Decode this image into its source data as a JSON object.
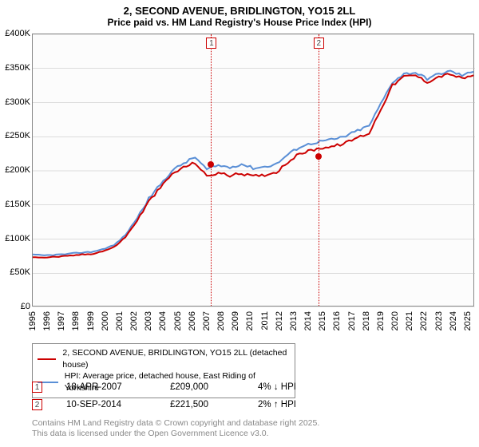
{
  "title_line1": "2, SECOND AVENUE, BRIDLINGTON, YO15 2LL",
  "title_line2": "Price paid vs. HM Land Registry's House Price Index (HPI)",
  "title_fontsize": 13,
  "chart": {
    "type": "line",
    "background_color": "#fcfcfc",
    "border_color": "#888888",
    "xlim": [
      1995,
      2025.5
    ],
    "ylim": [
      0,
      400000
    ],
    "ytick_step": 50000,
    "ytick_labels": [
      "£0",
      "£50K",
      "£100K",
      "£150K",
      "£200K",
      "£250K",
      "£300K",
      "£350K",
      "£400K"
    ],
    "xtick_step": 1,
    "xtick_labels": [
      "1995",
      "1996",
      "1997",
      "1998",
      "1999",
      "2000",
      "2001",
      "2002",
      "2003",
      "2004",
      "2005",
      "2006",
      "2007",
      "2008",
      "2009",
      "2010",
      "2011",
      "2012",
      "2013",
      "2014",
      "2015",
      "2016",
      "2017",
      "2018",
      "2019",
      "2020",
      "2021",
      "2022",
      "2023",
      "2024",
      "2025"
    ],
    "grid_color": "#bbbbbb",
    "axis_fontsize": 11,
    "series": [
      {
        "name": "2, SECOND AVENUE, BRIDLINGTON, YO15 2LL (detached house)",
        "color": "#cc0000",
        "line_width": 2,
        "values": [
          74,
          73,
          74,
          75,
          77,
          78,
          82,
          88,
          103,
          127,
          155,
          175,
          195,
          205,
          212,
          192,
          197,
          193,
          196,
          192,
          194,
          198,
          213,
          225,
          230,
          234,
          236,
          241,
          249,
          255,
          290,
          325,
          338,
          340,
          330,
          338,
          342,
          335,
          340
        ]
      },
      {
        "name": "HPI: Average price, detached house, East Riding of Yorkshire",
        "color": "#5a8fd6",
        "line_width": 2,
        "values": [
          77,
          76,
          77,
          78,
          80,
          81,
          85,
          91,
          106,
          131,
          159,
          180,
          200,
          211,
          220,
          202,
          208,
          205,
          210,
          204,
          206,
          210,
          224,
          235,
          240,
          244,
          246,
          251,
          259,
          266,
          298,
          330,
          342,
          344,
          335,
          342,
          346,
          340,
          345
        ]
      }
    ],
    "series_x_step": 0.8,
    "markers": [
      {
        "label": "1",
        "x": 2007.3,
        "y": 209000
      },
      {
        "label": "2",
        "x": 2014.7,
        "y": 221500
      }
    ],
    "marker_box_color": "#cc0000",
    "point_color": "#cc0000",
    "point_radius": 4
  },
  "legend": {
    "border_color": "#888888",
    "fontsize": 10.5,
    "items": [
      {
        "color": "#cc0000",
        "label": "2, SECOND AVENUE, BRIDLINGTON, YO15 2LL (detached house)"
      },
      {
        "color": "#5a8fd6",
        "label": "HPI: Average price, detached house, East Riding of Yorkshire"
      }
    ]
  },
  "sales": [
    {
      "marker": "1",
      "date": "18-APR-2007",
      "price": "£209,000",
      "pct": "4% ↓ HPI"
    },
    {
      "marker": "2",
      "date": "10-SEP-2014",
      "price": "£221,500",
      "pct": "2% ↑ HPI"
    }
  ],
  "footer_line1": "Contains HM Land Registry data © Crown copyright and database right 2025.",
  "footer_line2": "This data is licensed under the Open Government Licence v3.0.",
  "footer_color": "#888888",
  "footer_fontsize": 10.5
}
